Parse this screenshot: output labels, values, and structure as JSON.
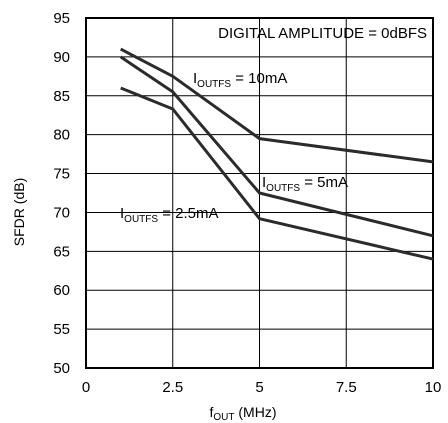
{
  "chart_data": {
    "type": "line",
    "title": "",
    "xlabel": "f",
    "xlabel_sub": "OUT",
    "xlabel_unit": " (MHz)",
    "ylabel": "SFDR (dB)",
    "xlim": [
      0,
      10
    ],
    "ylim": [
      50,
      95
    ],
    "xticks": [
      "0",
      "2.5",
      "5",
      "7.5",
      "10"
    ],
    "xtick_values": [
      0,
      2.5,
      5,
      7.5,
      10
    ],
    "yticks": [
      "95",
      "90",
      "85",
      "80",
      "75",
      "70",
      "65",
      "60",
      "55",
      "50"
    ],
    "ytick_values": [
      95,
      90,
      85,
      80,
      75,
      70,
      65,
      60,
      55,
      50
    ],
    "grid": true,
    "annotation": "DIGITAL AMPLITUDE = 0dBFS",
    "series": [
      {
        "name": "I",
        "name_sub": "OUTFS",
        "name_suffix": " = 10mA",
        "x": [
          1,
          2.5,
          5,
          10
        ],
        "y": [
          91,
          87.5,
          79.5,
          76.5
        ]
      },
      {
        "name": "I",
        "name_sub": "OUTFS",
        "name_suffix": " = 5mA",
        "x": [
          1,
          2.5,
          5,
          10
        ],
        "y": [
          90,
          85.5,
          72.5,
          67
        ]
      },
      {
        "name": "I",
        "name_sub": "OUTFS",
        "name_suffix": " = 2.5mA",
        "x": [
          1,
          2.5,
          5,
          10
        ],
        "y": [
          86,
          83.3,
          69.2,
          64
        ]
      }
    ],
    "colors": {
      "line": "#2b2b2b",
      "grid": "#000000"
    }
  }
}
